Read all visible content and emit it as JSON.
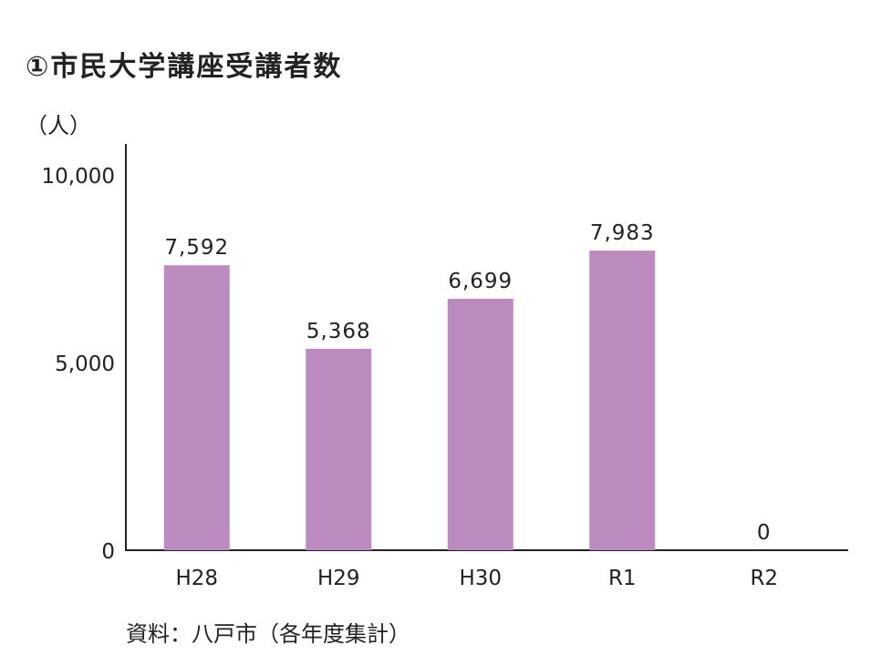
{
  "title": "①市民大学講座受講者数",
  "unit_label": "（人）",
  "source": "資料：八戸市（各年度集計）",
  "colors": {
    "bar": "#bb8bbf",
    "axis": "#222222"
  },
  "chart_data": {
    "type": "bar",
    "title": "①市民大学講座受講者数",
    "xlabel": "",
    "ylabel": "（人）",
    "categories": [
      "H28",
      "H29",
      "H30",
      "R1",
      "R2"
    ],
    "values": [
      7592,
      5368,
      6699,
      7983,
      0
    ],
    "value_labels": [
      "7,592",
      "5,368",
      "6,699",
      "7,983",
      "0"
    ],
    "ylim": [
      0,
      10000
    ],
    "yticks": [
      0,
      5000,
      10000
    ],
    "ytick_labels": [
      "0",
      "5,000",
      "10,000"
    ],
    "grid": false,
    "legend": "none"
  }
}
